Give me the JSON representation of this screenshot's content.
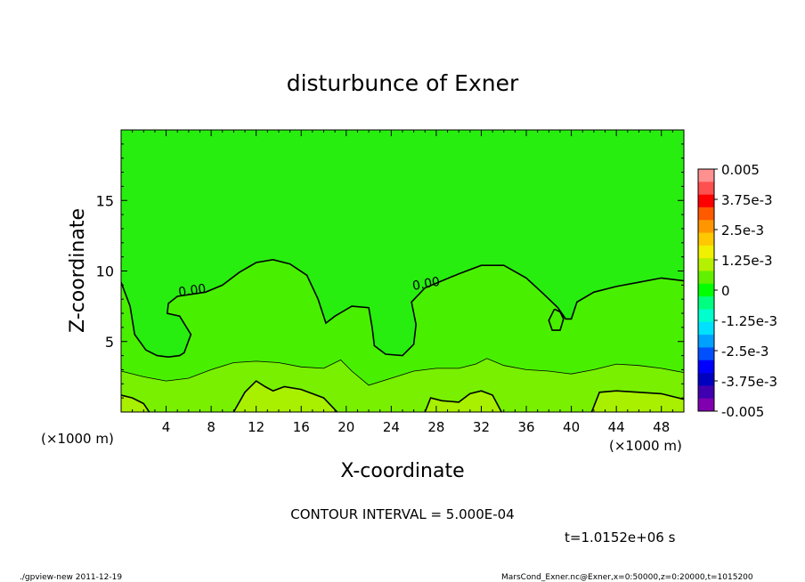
{
  "chart_data": {
    "type": "heatmap",
    "title": "disturbunce of Exner",
    "xlabel": "X-coordinate",
    "ylabel": "Z-coordinate",
    "x_unit_left": "(×1000 m)",
    "x_unit_right": "(×1000 m)",
    "xlim": [
      0,
      50
    ],
    "ylim": [
      0,
      20
    ],
    "xticks": [
      "4",
      "8",
      "12",
      "16",
      "20",
      "24",
      "28",
      "32",
      "36",
      "40",
      "44",
      "48"
    ],
    "xtick_values": [
      4,
      8,
      12,
      16,
      20,
      24,
      28,
      32,
      36,
      40,
      44,
      48
    ],
    "yticks": [
      "5",
      "10",
      "15"
    ],
    "ytick_values": [
      5,
      10,
      15
    ],
    "contour_labels": [
      "0.00",
      "0.00"
    ],
    "contour_interval_text": "CONTOUR INTERVAL = 5.000E-04",
    "time_text": "t=1.0152e+06 s",
    "footer_left": "./gpview-new  2011-12-19",
    "footer_right": "MarsCond_Exner.nc@Exner,x=0:50000,z=0:20000,t=1015200",
    "colorbar": {
      "labels": [
        "0.005",
        "3.75e-3",
        "2.5e-3",
        "1.25e-3",
        "0",
        "-1.25e-3",
        "-2.5e-3",
        "-3.75e-3",
        "-0.005"
      ],
      "colors": [
        "#ff9090",
        "#ff5050",
        "#ff0000",
        "#ff5a00",
        "#ff9600",
        "#ffc800",
        "#f0f000",
        "#b4f000",
        "#60f000",
        "#00ff00",
        "#00ff80",
        "#00ffcc",
        "#00e0ff",
        "#00a0ff",
        "#0050ff",
        "#0000ff",
        "#0000c0",
        "#4000b0",
        "#8000b0"
      ]
    },
    "contours": [
      {
        "level": 0.0,
        "points": [
          [
            0,
            9.2
          ],
          [
            0.8,
            7.5
          ],
          [
            1.2,
            5.5
          ],
          [
            2.2,
            4.4
          ],
          [
            3.2,
            4.0
          ],
          [
            4.2,
            3.9
          ],
          [
            5.2,
            4.0
          ],
          [
            5.6,
            4.2
          ],
          [
            6.2,
            5.5
          ],
          [
            5.2,
            6.8
          ],
          [
            4.1,
            7.0
          ],
          [
            4.2,
            7.7
          ],
          [
            5.0,
            8.2
          ],
          [
            7.5,
            8.5
          ],
          [
            9.0,
            9.0
          ],
          [
            10.5,
            9.9
          ],
          [
            12.0,
            10.6
          ],
          [
            13.5,
            10.8
          ],
          [
            15.0,
            10.5
          ],
          [
            16.5,
            9.7
          ],
          [
            17.5,
            8.0
          ],
          [
            18.2,
            6.3
          ],
          [
            19.0,
            6.8
          ],
          [
            20.5,
            7.5
          ],
          [
            22.0,
            7.4
          ],
          [
            22.3,
            6.0
          ],
          [
            22.5,
            4.7
          ],
          [
            23.5,
            4.1
          ],
          [
            25.0,
            4.0
          ],
          [
            26.0,
            4.8
          ],
          [
            26.2,
            6.2
          ],
          [
            25.8,
            7.8
          ],
          [
            27.0,
            8.8
          ],
          [
            30.0,
            9.8
          ],
          [
            32.0,
            10.4
          ],
          [
            34.0,
            10.4
          ],
          [
            36.0,
            9.5
          ],
          [
            37.5,
            8.4
          ],
          [
            38.8,
            7.4
          ],
          [
            39.5,
            6.6
          ],
          [
            40.0,
            6.6
          ],
          [
            40.5,
            7.8
          ],
          [
            42.0,
            8.5
          ],
          [
            44.0,
            8.9
          ],
          [
            46.0,
            9.2
          ],
          [
            48.0,
            9.5
          ],
          [
            50.0,
            9.3
          ]
        ]
      },
      {
        "level": 0.0,
        "points": [
          [
            38.5,
            7.3
          ],
          [
            38.0,
            6.5
          ],
          [
            38.3,
            5.8
          ],
          [
            39.0,
            5.8
          ],
          [
            39.3,
            6.6
          ],
          [
            39.0,
            7.1
          ],
          [
            38.5,
            7.3
          ]
        ]
      },
      {
        "level": 0.0005,
        "points": [
          [
            0,
            2.9
          ],
          [
            2.0,
            2.5
          ],
          [
            4.0,
            2.2
          ],
          [
            6.0,
            2.4
          ],
          [
            8.0,
            3.0
          ],
          [
            10.0,
            3.5
          ],
          [
            12.0,
            3.6
          ],
          [
            14.0,
            3.5
          ],
          [
            16.0,
            3.2
          ],
          [
            18.0,
            3.1
          ],
          [
            19.5,
            3.7
          ],
          [
            20.5,
            2.9
          ],
          [
            22.0,
            1.9
          ],
          [
            24.0,
            2.4
          ],
          [
            26.0,
            2.9
          ],
          [
            28.0,
            3.1
          ],
          [
            30.0,
            3.1
          ],
          [
            31.5,
            3.4
          ],
          [
            32.5,
            3.8
          ],
          [
            34.0,
            3.3
          ],
          [
            36.0,
            3.0
          ],
          [
            38.0,
            2.9
          ],
          [
            40.0,
            2.7
          ],
          [
            42.0,
            3.0
          ],
          [
            44.0,
            3.4
          ],
          [
            46.0,
            3.3
          ],
          [
            48.0,
            3.1
          ],
          [
            50.0,
            2.8
          ]
        ]
      },
      {
        "level": 0.001,
        "points": [
          [
            0,
            1.2
          ],
          [
            1.0,
            1.0
          ],
          [
            2.0,
            0.6
          ],
          [
            2.5,
            0.0
          ]
        ]
      },
      {
        "level": 0.001,
        "points": [
          [
            10.0,
            0.0
          ],
          [
            11.0,
            1.4
          ],
          [
            12.0,
            2.2
          ],
          [
            12.8,
            1.8
          ],
          [
            13.5,
            1.5
          ],
          [
            14.5,
            1.8
          ],
          [
            16.0,
            1.6
          ],
          [
            18.0,
            1.0
          ],
          [
            19.2,
            0.0
          ]
        ]
      },
      {
        "level": 0.001,
        "points": [
          [
            27.0,
            0.0
          ],
          [
            27.5,
            1.0
          ],
          [
            28.5,
            0.8
          ],
          [
            30.0,
            0.7
          ],
          [
            31.0,
            1.3
          ],
          [
            32.0,
            1.5
          ],
          [
            33.0,
            1.2
          ],
          [
            33.8,
            0.0
          ]
        ]
      },
      {
        "level": 0.001,
        "points": [
          [
            41.8,
            0.0
          ],
          [
            42.5,
            1.4
          ],
          [
            44.0,
            1.5
          ],
          [
            46.0,
            1.4
          ],
          [
            48.0,
            1.3
          ],
          [
            50.0,
            0.9
          ]
        ]
      }
    ]
  }
}
